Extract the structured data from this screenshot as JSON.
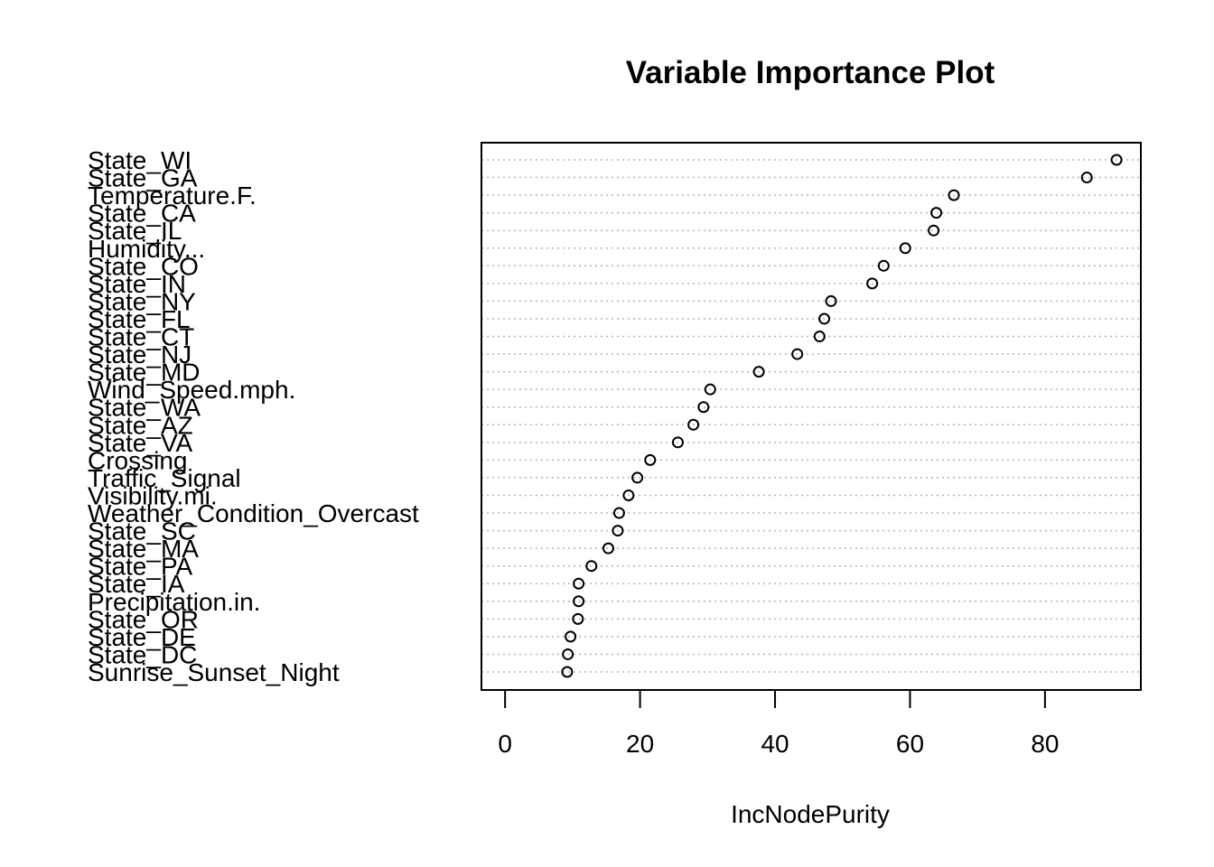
{
  "chart_data": {
    "type": "scatter",
    "title": "Variable Importance Plot",
    "xlabel": "IncNodePurity",
    "ylabel": "",
    "xlim": [
      -3.5,
      94.2
    ],
    "x_ticks": [
      0,
      20,
      40,
      60,
      80
    ],
    "grid": "horizontal dotted",
    "categories": [
      "State_WI",
      "State_GA",
      "Temperature.F.",
      "State_CA",
      "State_IL",
      "Humidity...",
      "State_CO",
      "State_IN",
      "State_NY",
      "State_FL",
      "State_CT",
      "State_NJ",
      "State_MD",
      "Wind_Speed.mph.",
      "State_WA",
      "State_AZ",
      "State_VA",
      "Crossing",
      "Traffic_Signal",
      "Visibility.mi.",
      "Weather_Condition_Overcast",
      "State_SC",
      "State_MA",
      "State_PA",
      "State_IA",
      "Precipitation.in.",
      "State_OR",
      "State_DE",
      "State_DC",
      "Sunrise_Sunset_Night"
    ],
    "values": [
      90.6,
      86.2,
      66.5,
      63.9,
      63.5,
      59.3,
      56.1,
      54.4,
      48.3,
      47.3,
      46.6,
      43.3,
      37.6,
      30.4,
      29.4,
      27.9,
      25.6,
      21.5,
      19.6,
      18.3,
      16.9,
      16.7,
      15.3,
      12.8,
      10.9,
      10.9,
      10.8,
      9.7,
      9.3,
      9.2
    ]
  }
}
